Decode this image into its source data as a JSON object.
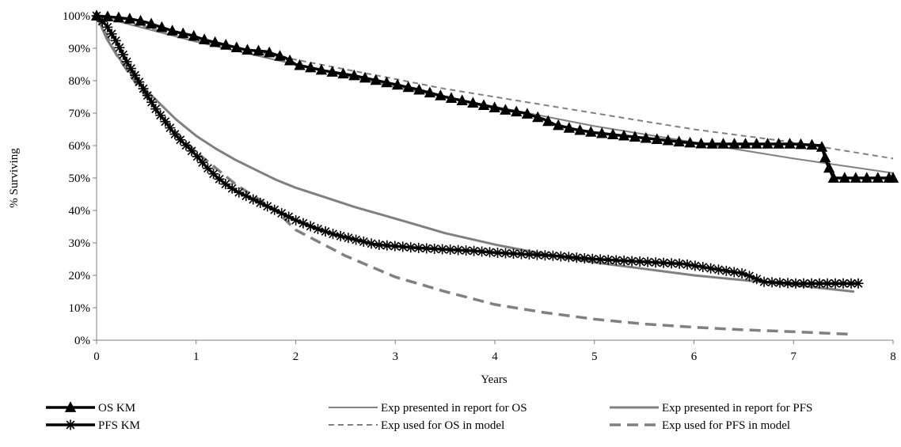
{
  "chart_data": {
    "type": "line",
    "title": "",
    "xlabel": "Years",
    "ylabel": "% Surviving",
    "xlim": [
      0,
      8
    ],
    "ylim": [
      0,
      100
    ],
    "x_ticks": [
      "0",
      "1",
      "2",
      "3",
      "4",
      "5",
      "6",
      "7",
      "8"
    ],
    "y_ticks": [
      "0%",
      "10%",
      "20%",
      "30%",
      "40%",
      "50%",
      "60%",
      "70%",
      "80%",
      "90%",
      "100%"
    ],
    "grid": false,
    "legend_position": "bottom",
    "series": [
      {
        "name": "OS KM",
        "color": "#000000",
        "style": "solid-thick",
        "marker": "triangle",
        "x": [
          0,
          0.2,
          0.35,
          0.5,
          0.65,
          0.8,
          0.95,
          1.1,
          1.3,
          1.5,
          1.7,
          1.8,
          1.9,
          2.0,
          2.3,
          2.6,
          2.9,
          3.2,
          3.5,
          3.8,
          4.1,
          4.3,
          4.5,
          4.6,
          4.8,
          5.0,
          5.3,
          5.6,
          5.9,
          6.1,
          6.5,
          6.8,
          7.0,
          7.28,
          7.33,
          7.4,
          7.6,
          7.8,
          8.0
        ],
        "y": [
          100,
          99.5,
          99,
          98,
          96.5,
          95,
          94,
          92.5,
          91,
          89.5,
          89,
          88,
          87,
          85,
          83,
          81.5,
          79.5,
          77.5,
          75,
          73,
          71,
          70,
          68,
          66.5,
          65,
          64,
          63,
          62,
          61,
          60.5,
          60.5,
          60.5,
          60.5,
          60,
          55,
          50,
          50,
          50,
          50
        ]
      },
      {
        "name": "PFS KM",
        "color": "#000000",
        "style": "solid-thick",
        "marker": "star",
        "x": [
          0,
          0.1,
          0.2,
          0.3,
          0.4,
          0.5,
          0.6,
          0.7,
          0.8,
          0.9,
          1.0,
          1.1,
          1.2,
          1.3,
          1.4,
          1.5,
          1.6,
          1.8,
          2.0,
          2.2,
          2.4,
          2.6,
          2.8,
          3.0,
          3.2,
          3.5,
          3.8,
          4.0,
          4.3,
          4.6,
          5.0,
          5.3,
          5.6,
          5.9,
          6.1,
          6.3,
          6.5,
          6.7,
          7.0,
          7.3,
          7.6,
          7.65
        ],
        "y": [
          100,
          97,
          92,
          86,
          81,
          76,
          71,
          67,
          63,
          60,
          57,
          53.5,
          50.5,
          48,
          46,
          44.5,
          43,
          40,
          37,
          34.5,
          32.5,
          31,
          29.5,
          29,
          28.5,
          28,
          27.5,
          27,
          26.5,
          26,
          25,
          24.5,
          24,
          23.5,
          22.5,
          21.5,
          20.5,
          18,
          17.5,
          17.5,
          17.5,
          17.5
        ]
      },
      {
        "name": "Exp presented in report for OS",
        "color": "#808080",
        "style": "solid-thin",
        "marker": "none",
        "x": [
          0,
          1,
          2,
          3,
          4,
          5,
          6,
          7,
          8
        ],
        "y": [
          100,
          92,
          85,
          78,
          72,
          66,
          61,
          56,
          51.5
        ]
      },
      {
        "name": "Exp presented in report for PFS",
        "color": "#808080",
        "style": "solid-thick",
        "marker": "none",
        "x": [
          0,
          0.1,
          0.2,
          0.3,
          0.4,
          0.5,
          0.6,
          0.7,
          0.8,
          1.0,
          1.2,
          1.4,
          1.6,
          1.8,
          2.0,
          2.3,
          2.6,
          3.0,
          3.5,
          4.0,
          4.5,
          5.0,
          5.5,
          6.0,
          6.5,
          7.0,
          7.3,
          7.6
        ],
        "y": [
          100,
          93,
          88,
          84,
          80,
          77,
          74,
          71,
          68,
          63,
          59,
          55.5,
          52.5,
          49.5,
          47,
          44,
          41,
          37.5,
          33,
          29.5,
          26.5,
          24,
          22,
          20,
          18.5,
          17,
          16,
          15
        ]
      },
      {
        "name": "Exp used for OS in model",
        "color": "#808080",
        "style": "dashed-thin",
        "marker": "none",
        "x": [
          0,
          0.5,
          1,
          1.5,
          2,
          2.5,
          3,
          3.5,
          4,
          4.5,
          5,
          5.5,
          6,
          6.5,
          7,
          7.5,
          8
        ],
        "y": [
          100,
          96.5,
          92.5,
          89.5,
          86.5,
          83.5,
          80.5,
          77.5,
          75,
          72.5,
          70,
          67.5,
          65,
          63,
          61,
          58.5,
          56
        ]
      },
      {
        "name": "Exp used for PFS in model",
        "color": "#808080",
        "style": "dashed-thick",
        "marker": "none",
        "x": [
          0,
          0.2,
          0.4,
          0.6,
          0.8,
          1.0,
          1.2,
          1.4,
          1.6,
          1.8,
          2.0,
          2.5,
          3.0,
          3.5,
          4.0,
          4.5,
          5.0,
          5.5,
          6.0,
          6.5,
          7.0,
          7.3,
          7.6
        ],
        "y": [
          100,
          88,
          79,
          71,
          64,
          58,
          53,
          48,
          44,
          40,
          34,
          26,
          19.5,
          15,
          11,
          8.5,
          6.5,
          5,
          4,
          3.2,
          2.6,
          2.2,
          1.8
        ]
      }
    ]
  }
}
